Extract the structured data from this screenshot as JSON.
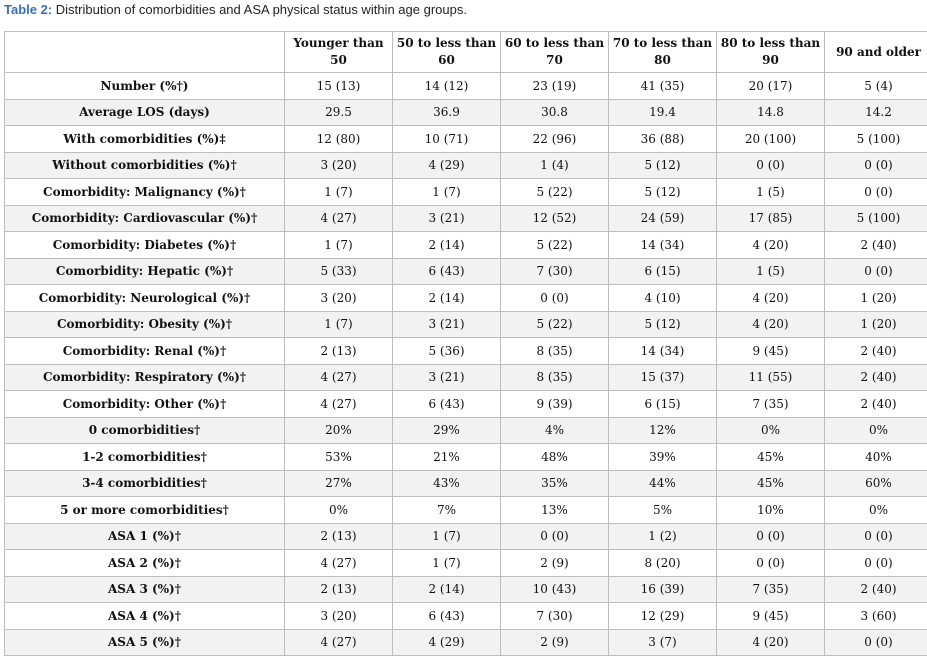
{
  "caption": {
    "label": "Table 2:",
    "text": " Distribution of comorbidities and ASA physical status within age groups."
  },
  "table": {
    "headers": [
      "",
      "Younger than 50",
      "50 to less than 60",
      "60 to less than 70",
      "70 to less than 80",
      "80 to less than 90",
      "90 and older"
    ],
    "rows": [
      {
        "label": "Number (%†)",
        "values": [
          "15 (13)",
          "14 (12)",
          "23 (19)",
          "41 (35)",
          "20 (17)",
          "5 (4)"
        ]
      },
      {
        "label": "Average LOS (days)",
        "values": [
          "29.5",
          "36.9",
          "30.8",
          "19.4",
          "14.8",
          "14.2"
        ]
      },
      {
        "label": "With comorbidities (%)‡",
        "values": [
          "12 (80)",
          "10 (71)",
          "22 (96)",
          "36 (88)",
          "20 (100)",
          "5 (100)"
        ]
      },
      {
        "label": "Without comorbidities (%)†",
        "values": [
          "3 (20)",
          "4 (29)",
          "1 (4)",
          "5 (12)",
          "0 (0)",
          "0 (0)"
        ]
      },
      {
        "label": "Comorbidity: Malignancy (%)†",
        "values": [
          "1 (7)",
          "1 (7)",
          "5 (22)",
          "5 (12)",
          "1 (5)",
          "0 (0)"
        ]
      },
      {
        "label": "Comorbidity: Cardiovascular (%)†",
        "values": [
          "4 (27)",
          "3 (21)",
          "12 (52)",
          "24 (59)",
          "17 (85)",
          "5 (100)"
        ]
      },
      {
        "label": "Comorbidity: Diabetes (%)†",
        "values": [
          "1 (7)",
          "2 (14)",
          "5 (22)",
          "14 (34)",
          "4 (20)",
          "2 (40)"
        ]
      },
      {
        "label": "Comorbidity: Hepatic (%)†",
        "values": [
          "5 (33)",
          "6 (43)",
          "7 (30)",
          "6 (15)",
          "1 (5)",
          "0 (0)"
        ]
      },
      {
        "label": "Comorbidity: Neurological (%)†",
        "values": [
          "3 (20)",
          "2 (14)",
          "0 (0)",
          "4 (10)",
          "4 (20)",
          "1 (20)"
        ]
      },
      {
        "label": "Comorbidity: Obesity (%)†",
        "values": [
          "1 (7)",
          "3 (21)",
          "5 (22)",
          "5 (12)",
          "4 (20)",
          "1 (20)"
        ]
      },
      {
        "label": "Comorbidity: Renal (%)†",
        "values": [
          "2 (13)",
          "5 (36)",
          "8 (35)",
          "14 (34)",
          "9 (45)",
          "2 (40)"
        ]
      },
      {
        "label": "Comorbidity: Respiratory (%)†",
        "values": [
          "4 (27)",
          "3 (21)",
          "8 (35)",
          "15 (37)",
          "11 (55)",
          "2 (40)"
        ]
      },
      {
        "label": "Comorbidity: Other (%)†",
        "values": [
          "4 (27)",
          "6 (43)",
          "9 (39)",
          "6 (15)",
          "7 (35)",
          "2 (40)"
        ]
      },
      {
        "label": "0 comorbidities†",
        "values": [
          "20%",
          "29%",
          "4%",
          "12%",
          "0%",
          "0%"
        ]
      },
      {
        "label": "1-2 comorbidities†",
        "values": [
          "53%",
          "21%",
          "48%",
          "39%",
          "45%",
          "40%"
        ]
      },
      {
        "label": "3-4 comorbidities†",
        "values": [
          "27%",
          "43%",
          "35%",
          "44%",
          "45%",
          "60%"
        ]
      },
      {
        "label": "5 or more comorbidities†",
        "values": [
          "0%",
          "7%",
          "13%",
          "5%",
          "10%",
          "0%"
        ]
      },
      {
        "label": "ASA 1 (%)†",
        "values": [
          "2 (13)",
          "1 (7)",
          "0 (0)",
          "1 (2)",
          "0 (0)",
          "0 (0)"
        ]
      },
      {
        "label": "ASA 2 (%)†",
        "values": [
          "4 (27)",
          "1 (7)",
          "2 (9)",
          "8 (20)",
          "0 (0)",
          "0 (0)"
        ]
      },
      {
        "label": "ASA 3 (%)†",
        "values": [
          "2 (13)",
          "2 (14)",
          "10 (43)",
          "16 (39)",
          "7 (35)",
          "2 (40)"
        ]
      },
      {
        "label": "ASA 4 (%)†",
        "values": [
          "3 (20)",
          "6 (43)",
          "7 (30)",
          "12 (29)",
          "9 (45)",
          "3 (60)"
        ]
      },
      {
        "label": "ASA 5 (%)†",
        "values": [
          "4 (27)",
          "4 (29)",
          "2 (9)",
          "3 (7)",
          "4 (20)",
          "0 (0)"
        ]
      }
    ]
  }
}
